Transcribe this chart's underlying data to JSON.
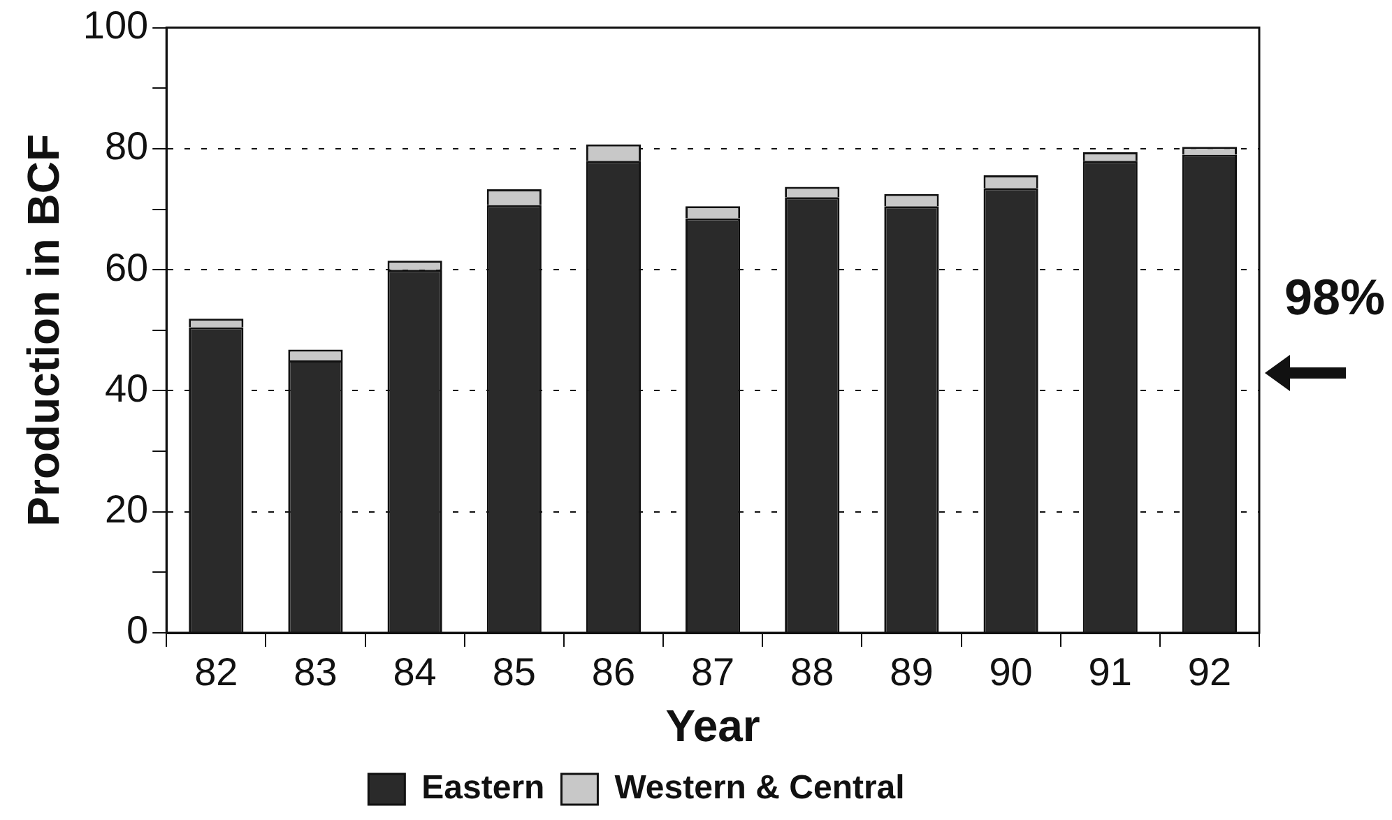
{
  "chart_data": {
    "type": "bar",
    "stacked": true,
    "xlabel": "Year",
    "ylabel": "Production in BCF",
    "categories": [
      "82",
      "83",
      "84",
      "85",
      "86",
      "87",
      "88",
      "89",
      "90",
      "91",
      "92"
    ],
    "series": [
      {
        "name": "Eastern",
        "color": "#2a2a2a",
        "values": [
          50.5,
          45,
          60,
          70.7,
          78,
          68.5,
          72,
          70.5,
          73.5,
          78,
          79
        ]
      },
      {
        "name": "Western & Central",
        "color": "#c8c8c8",
        "values": [
          1.4,
          1.8,
          1.5,
          2.6,
          2.7,
          2,
          1.7,
          2,
          2.1,
          1.4,
          1.3
        ]
      }
    ],
    "ylim": [
      0,
      100
    ],
    "yticks": [
      0,
      {
        "value": 10,
        "label": null
      },
      20,
      {
        "value": 30,
        "label": null
      },
      40,
      {
        "value": 50,
        "label": null
      },
      60,
      {
        "value": 70,
        "label": null
      },
      80,
      {
        "value": 90,
        "label": null
      },
      100
    ],
    "grid": "y",
    "line_style": "dashed",
    "legend": "bottom",
    "annotations": [
      "98%"
    ]
  }
}
